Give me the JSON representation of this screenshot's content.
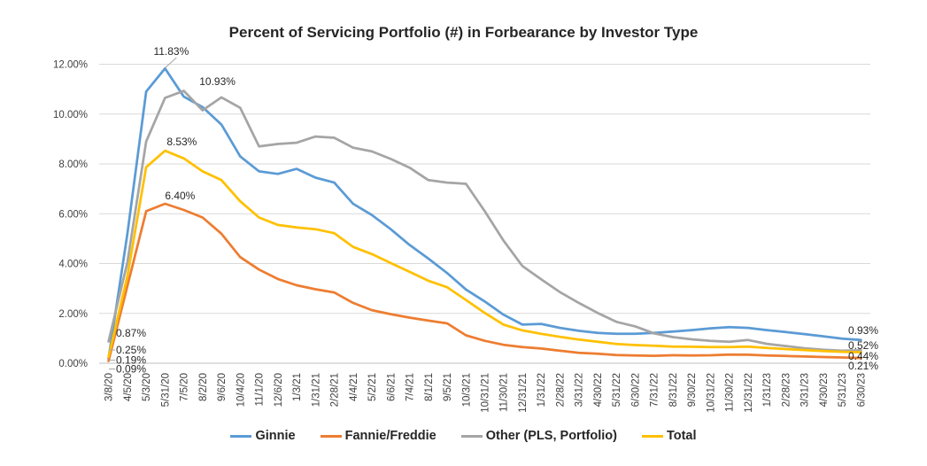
{
  "title": "Percent of Servicing Portfolio (#) in Forbearance by Investor Type",
  "chart_data": {
    "type": "line",
    "x_labels": [
      "3/8/20",
      "4/5/20",
      "5/3/20",
      "5/31/20",
      "7/5/20",
      "8/2/20",
      "9/6/20",
      "10/4/20",
      "11/1/20",
      "12/6/20",
      "1/3/21",
      "1/31/21",
      "2/28/21",
      "4/4/21",
      "5/2/21",
      "6/6/21",
      "7/4/21",
      "8/1/21",
      "9/5/21",
      "10/3/21",
      "10/31/21",
      "11/30/21",
      "12/31/21",
      "1/31/22",
      "2/28/22",
      "3/31/22",
      "4/30/22",
      "5/31/22",
      "6/30/22",
      "7/31/22",
      "8/31/22",
      "9/30/22",
      "10/31/22",
      "11/30/22",
      "12/31/22",
      "1/31/23",
      "2/28/23",
      "3/31/23",
      "4/30/23",
      "5/31/23",
      "6/30/23"
    ],
    "y_axis": {
      "min": 0,
      "max": 12,
      "tick_step": 2,
      "tick_labels": [
        "0.00%",
        "2.00%",
        "4.00%",
        "6.00%",
        "8.00%",
        "10.00%",
        "12.00%"
      ]
    },
    "grid": true,
    "legend_position": "bottom",
    "series": [
      {
        "name": "Ginnie",
        "color": "#5B9BD5",
        "values": [
          0.19,
          5.2,
          10.9,
          11.83,
          10.7,
          10.28,
          9.58,
          8.3,
          7.7,
          7.6,
          7.8,
          7.45,
          7.25,
          6.4,
          5.95,
          5.38,
          4.75,
          4.2,
          3.62,
          2.96,
          2.48,
          1.95,
          1.55,
          1.58,
          1.42,
          1.3,
          1.22,
          1.18,
          1.18,
          1.22,
          1.27,
          1.33,
          1.4,
          1.45,
          1.42,
          1.33,
          1.25,
          1.17,
          1.08,
          0.99,
          0.93
        ]
      },
      {
        "name": "Fannie/Freddie",
        "color": "#ED7D31",
        "values": [
          0.09,
          3.1,
          6.1,
          6.4,
          6.15,
          5.85,
          5.2,
          4.26,
          3.76,
          3.38,
          3.13,
          2.97,
          2.84,
          2.42,
          2.13,
          1.97,
          1.83,
          1.71,
          1.6,
          1.12,
          0.9,
          0.74,
          0.65,
          0.59,
          0.5,
          0.42,
          0.38,
          0.33,
          0.31,
          0.3,
          0.32,
          0.31,
          0.32,
          0.35,
          0.34,
          0.31,
          0.29,
          0.27,
          0.25,
          0.23,
          0.21
        ]
      },
      {
        "name": "Other (PLS, Portfolio)",
        "color": "#A5A5A5",
        "values": [
          0.87,
          4.05,
          8.9,
          10.65,
          10.93,
          10.15,
          10.67,
          10.25,
          8.7,
          8.8,
          8.85,
          9.1,
          9.05,
          8.65,
          8.5,
          8.2,
          7.85,
          7.35,
          7.25,
          7.2,
          6.1,
          4.92,
          3.9,
          3.37,
          2.85,
          2.42,
          2.02,
          1.66,
          1.48,
          1.2,
          1.05,
          0.96,
          0.9,
          0.86,
          0.93,
          0.78,
          0.69,
          0.6,
          0.54,
          0.5,
          0.52
        ]
      },
      {
        "name": "Total",
        "color": "#FFC000",
        "values": [
          0.25,
          3.5,
          7.87,
          8.53,
          8.22,
          7.7,
          7.35,
          6.5,
          5.85,
          5.55,
          5.45,
          5.38,
          5.22,
          4.67,
          4.38,
          4.02,
          3.67,
          3.31,
          3.05,
          2.54,
          2.02,
          1.55,
          1.32,
          1.18,
          1.06,
          0.95,
          0.86,
          0.77,
          0.73,
          0.7,
          0.67,
          0.66,
          0.65,
          0.65,
          0.67,
          0.61,
          0.57,
          0.53,
          0.49,
          0.46,
          0.44
        ]
      }
    ],
    "annotations": {
      "peaks": [
        {
          "text": "11.83%",
          "series": "Ginnie",
          "x": "5/31/20",
          "value": 11.83
        },
        {
          "text": "10.93%",
          "series": "Other (PLS, Portfolio)",
          "x": "7/5/20",
          "value": 10.93
        },
        {
          "text": "8.53%",
          "series": "Total",
          "x": "5/31/20",
          "value": 8.53
        },
        {
          "text": "6.40%",
          "series": "Fannie/Freddie",
          "x": "5/31/20",
          "value": 6.4
        }
      ],
      "start": [
        {
          "text": "0.87%",
          "series": "Other (PLS, Portfolio)",
          "x": "3/8/20",
          "value": 0.87
        },
        {
          "text": "0.25%",
          "series": "Total",
          "x": "3/8/20",
          "value": 0.25
        },
        {
          "text": "0.19%",
          "series": "Ginnie",
          "x": "3/8/20",
          "value": 0.19
        },
        {
          "text": "0.09%",
          "series": "Fannie/Freddie",
          "x": "3/8/20",
          "value": 0.09
        }
      ],
      "end": [
        {
          "text": "0.93%",
          "series": "Ginnie",
          "x": "6/30/23",
          "value": 0.93
        },
        {
          "text": "0.52%",
          "series": "Other (PLS, Portfolio)",
          "x": "6/30/23",
          "value": 0.52
        },
        {
          "text": "0.44%",
          "series": "Total",
          "x": "6/30/23",
          "value": 0.44
        },
        {
          "text": "0.21%",
          "series": "Fannie/Freddie",
          "x": "6/30/23",
          "value": 0.21
        }
      ]
    }
  }
}
